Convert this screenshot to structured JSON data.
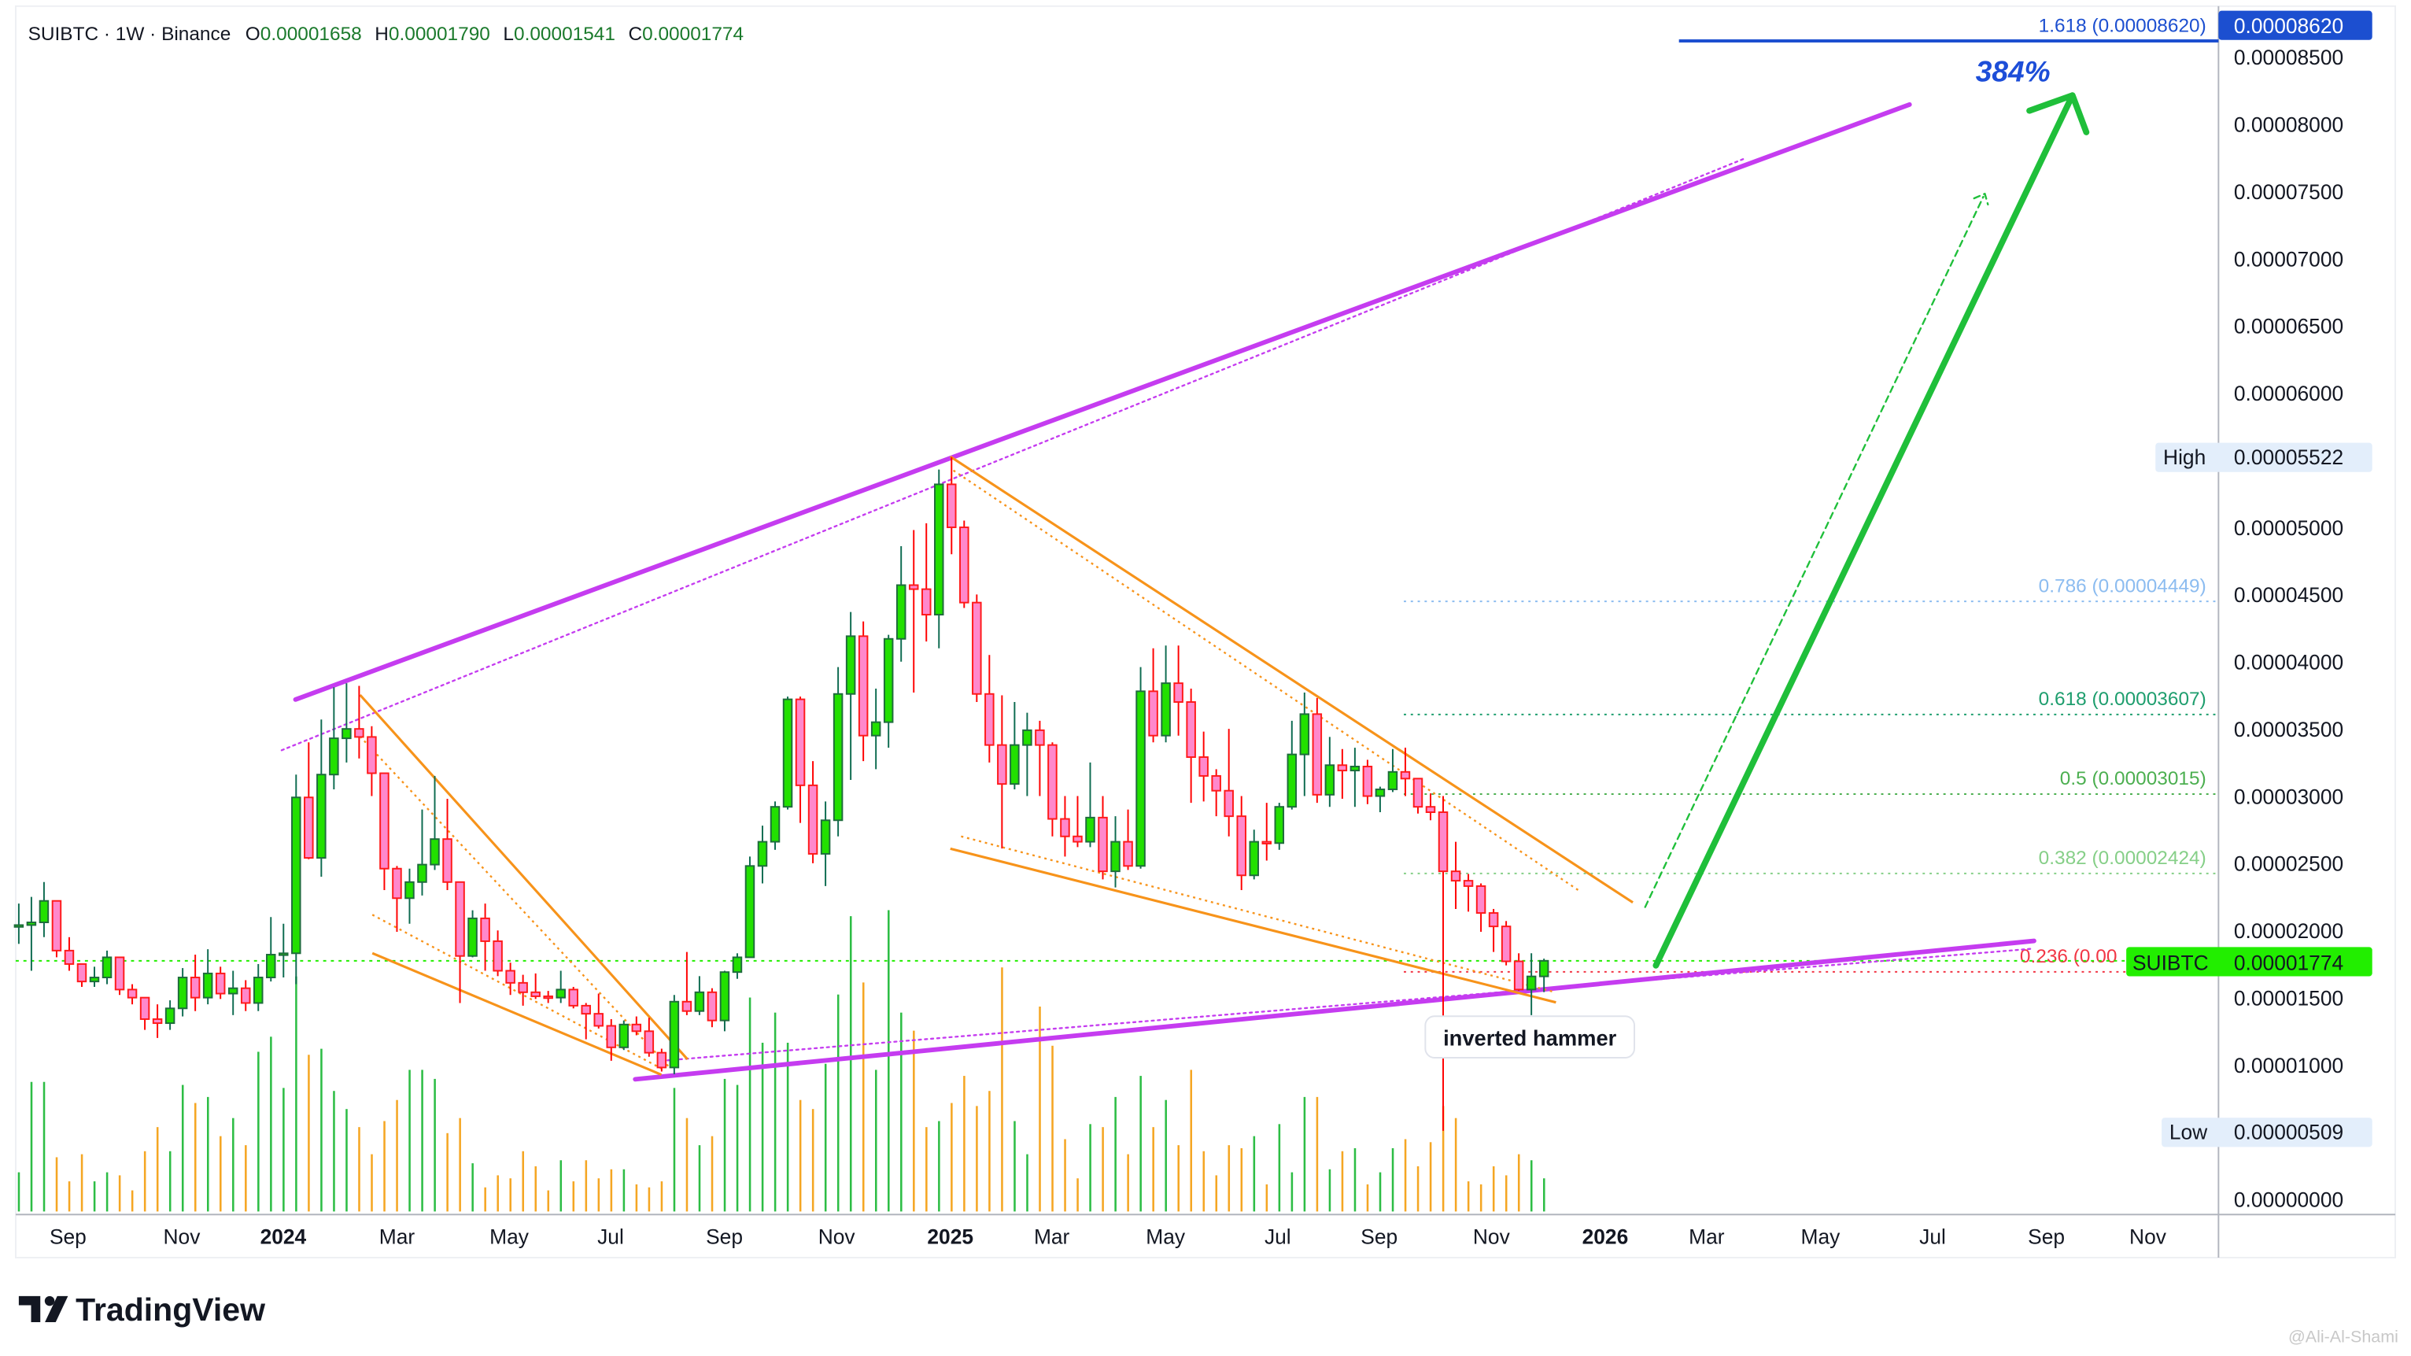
{
  "header": {
    "symbol_line": "SUIBTC · 1W · Binance",
    "o_label": "O",
    "o_value": "0.00001658",
    "h_label": "H",
    "h_value": "0.00001790",
    "l_label": "L",
    "l_value": "0.00001541",
    "c_label": "C",
    "c_value": "0.00001774"
  },
  "colors": {
    "up_body": "#22e000",
    "up_border": "#1e6b3c",
    "up_wick": "#0d6b50",
    "down_body": "#ff88cc",
    "down_border": "#ff1a1a",
    "down_wick": "#ff0000",
    "volume_up": "#2dbd45",
    "volume_down": "#f5a623",
    "channel": "#c53cf0",
    "wedge": "#f7931a",
    "arrow": "#1fbf3a",
    "fib_1618": "#1c4fd0",
    "fib_0786": "#8cbcf0",
    "fib_0618": "#1e9e6e",
    "fib_05": "#4caf50",
    "fib_0382": "#86cf88",
    "fib_0236": "#f23645",
    "last_price": "#22ee00"
  },
  "price_axis": {
    "ticks": [
      "0.00000000",
      "0.00001000",
      "0.00001500",
      "0.00002000",
      "0.00002500",
      "0.00003000",
      "0.00003500",
      "0.00004000",
      "0.00004500",
      "0.00005000",
      "0.00006000",
      "0.00006500",
      "0.00007000",
      "0.00007500",
      "0.00008000",
      "0.00008500"
    ],
    "tick_values": [
      0,
      1e-05,
      1.5e-05,
      2e-05,
      2.5e-05,
      3e-05,
      3.5e-05,
      4e-05,
      4.5e-05,
      5e-05,
      6e-05,
      6.5e-05,
      7e-05,
      7.5e-05,
      8e-05,
      8.5e-05
    ],
    "fib_tag": "0.00008620",
    "high_label": "High",
    "high_value": "0.00005522",
    "last_symbol": "SUIBTC",
    "last_value": "0.00001774",
    "low_label": "Low",
    "low_value": "0.00000509"
  },
  "time_axis": {
    "labels": [
      {
        "text": "Sep",
        "bold": false
      },
      {
        "text": "Nov",
        "bold": false
      },
      {
        "text": "2024",
        "bold": true
      },
      {
        "text": "Mar",
        "bold": false
      },
      {
        "text": "May",
        "bold": false
      },
      {
        "text": "Jul",
        "bold": false
      },
      {
        "text": "Sep",
        "bold": false
      },
      {
        "text": "Nov",
        "bold": false
      },
      {
        "text": "2025",
        "bold": true
      },
      {
        "text": "Mar",
        "bold": false
      },
      {
        "text": "May",
        "bold": false
      },
      {
        "text": "Jul",
        "bold": false
      },
      {
        "text": "Sep",
        "bold": false
      },
      {
        "text": "Nov",
        "bold": false
      },
      {
        "text": "2026",
        "bold": true
      },
      {
        "text": "Mar",
        "bold": false
      },
      {
        "text": "May",
        "bold": false
      },
      {
        "text": "Jul",
        "bold": false
      },
      {
        "text": "Sep",
        "bold": false
      },
      {
        "text": "Nov",
        "bold": false
      }
    ]
  },
  "fib_levels": [
    {
      "label": "1.618 (0.00008620)",
      "price": 8.62e-05,
      "color_key": "fib_1618",
      "style": "solid"
    },
    {
      "label": "0.786 (0.00004449)",
      "price": 4.449e-05,
      "color_key": "fib_0786",
      "style": "dotted"
    },
    {
      "label": "0.618 (0.00003607)",
      "price": 3.607e-05,
      "color_key": "fib_0618",
      "style": "dotted"
    },
    {
      "label": "0.5 (0.00003015)",
      "price": 3.015e-05,
      "color_key": "fib_05",
      "style": "dotted"
    },
    {
      "label": "0.382 (0.00002424)",
      "price": 2.424e-05,
      "color_key": "fib_0382",
      "style": "dotted"
    },
    {
      "label": "0.236 (0.00",
      "price": 1.692e-05,
      "color_key": "fib_0236",
      "style": "dotted"
    }
  ],
  "annotations": {
    "target_percent": "384%",
    "pattern_label": "inverted hammer"
  },
  "branding": {
    "logo_text": "TradingView",
    "watermark": "@Ali-Al-Shami"
  },
  "chart_data": {
    "type": "candlestick",
    "interval": "1W",
    "symbol": "SUIBTC",
    "exchange": "Binance",
    "ylim": [
      0,
      8.9e-05
    ],
    "grid": false,
    "ohlc": [
      [
        2.03e-05,
        2.2e-05,
        1.9e-05,
        2.04e-05
      ],
      [
        2.04e-05,
        2.25e-05,
        1.7e-05,
        2.06e-05
      ],
      [
        2.06e-05,
        2.36e-05,
        1.95e-05,
        2.22e-05
      ],
      [
        2.22e-05,
        2.22e-05,
        1.8e-05,
        1.85e-05
      ],
      [
        1.85e-05,
        1.95e-05,
        1.7e-05,
        1.75e-05
      ],
      [
        1.75e-05,
        1.75e-05,
        1.58e-05,
        1.62e-05
      ],
      [
        1.62e-05,
        1.73e-05,
        1.58e-05,
        1.65e-05
      ],
      [
        1.65e-05,
        1.85e-05,
        1.6e-05,
        1.8e-05
      ],
      [
        1.8e-05,
        1.8e-05,
        1.52e-05,
        1.56e-05
      ],
      [
        1.56e-05,
        1.6e-05,
        1.45e-05,
        1.5e-05
      ],
      [
        1.5e-05,
        1.5e-05,
        1.26e-05,
        1.34e-05
      ],
      [
        1.34e-05,
        1.45e-05,
        1.2e-05,
        1.31e-05
      ],
      [
        1.31e-05,
        1.48e-05,
        1.26e-05,
        1.42e-05
      ],
      [
        1.42e-05,
        1.72e-05,
        1.36e-05,
        1.65e-05
      ],
      [
        1.65e-05,
        1.82e-05,
        1.4e-05,
        1.5e-05
      ],
      [
        1.5e-05,
        1.86e-05,
        1.45e-05,
        1.68e-05
      ],
      [
        1.68e-05,
        1.73e-05,
        1.49e-05,
        1.53e-05
      ],
      [
        1.53e-05,
        1.7e-05,
        1.37e-05,
        1.57e-05
      ],
      [
        1.57e-05,
        1.63e-05,
        1.4e-05,
        1.46e-05
      ],
      [
        1.46e-05,
        1.75e-05,
        1.4e-05,
        1.65e-05
      ],
      [
        1.65e-05,
        2.1e-05,
        1.62e-05,
        1.82e-05
      ],
      [
        1.82e-05,
        2.05e-05,
        1.65e-05,
        1.83e-05
      ],
      [
        1.83e-05,
        3.16e-05,
        1.6e-05,
        2.99e-05
      ],
      [
        2.99e-05,
        3.4e-05,
        2.53e-05,
        2.54e-05
      ],
      [
        2.54e-05,
        3.57e-05,
        2.4e-05,
        3.16e-05
      ],
      [
        3.16e-05,
        3.81e-05,
        3.05e-05,
        3.43e-05
      ],
      [
        3.43e-05,
        3.84e-05,
        3.25e-05,
        3.5e-05
      ],
      [
        3.5e-05,
        3.82e-05,
        3.28e-05,
        3.44e-05
      ],
      [
        3.44e-05,
        3.52e-05,
        3e-05,
        3.17e-05
      ],
      [
        3.17e-05,
        3.17e-05,
        2.3e-05,
        2.46e-05
      ],
      [
        2.46e-05,
        2.48e-05,
        1.99e-05,
        2.24e-05
      ],
      [
        2.24e-05,
        2.46e-05,
        2.05e-05,
        2.36e-05
      ],
      [
        2.36e-05,
        2.9e-05,
        2.26e-05,
        2.49e-05
      ],
      [
        2.49e-05,
        3.15e-05,
        2.45e-05,
        2.68e-05
      ],
      [
        2.68e-05,
        2.98e-05,
        2.3e-05,
        2.36e-05
      ],
      [
        2.36e-05,
        2.36e-05,
        1.46e-05,
        1.81e-05
      ],
      [
        1.81e-05,
        2.15e-05,
        1.8e-05,
        2.09e-05
      ],
      [
        2.09e-05,
        2.2e-05,
        1.7e-05,
        1.92e-05
      ],
      [
        1.92e-05,
        2e-05,
        1.66e-05,
        1.7e-05
      ],
      [
        1.7e-05,
        1.76e-05,
        1.52e-05,
        1.61e-05
      ],
      [
        1.61e-05,
        1.67e-05,
        1.44e-05,
        1.54e-05
      ],
      [
        1.54e-05,
        1.68e-05,
        1.49e-05,
        1.51e-05
      ],
      [
        1.51e-05,
        1.55e-05,
        1.46e-05,
        1.5e-05
      ],
      [
        1.5e-05,
        1.7e-05,
        1.46e-05,
        1.56e-05
      ],
      [
        1.56e-05,
        1.58e-05,
        1.42e-05,
        1.44e-05
      ],
      [
        1.44e-05,
        1.46e-05,
        1.19e-05,
        1.38e-05
      ],
      [
        1.38e-05,
        1.53e-05,
        1.27e-05,
        1.29e-05
      ],
      [
        1.29e-05,
        1.34e-05,
        1.03e-05,
        1.13e-05
      ],
      [
        1.13e-05,
        1.33e-05,
        1.11e-05,
        1.3e-05
      ],
      [
        1.3e-05,
        1.36e-05,
        1.22e-05,
        1.25e-05
      ],
      [
        1.25e-05,
        1.35e-05,
        1.06e-05,
        1.09e-05
      ],
      [
        1.09e-05,
        1.12e-05,
        9.5e-06,
        9.8e-06
      ],
      [
        9.8e-06,
        1.52e-05,
        9.3e-06,
        1.47e-05
      ],
      [
        1.47e-05,
        1.84e-05,
        1.37e-05,
        1.4e-05
      ],
      [
        1.4e-05,
        1.66e-05,
        1.37e-05,
        1.54e-05
      ],
      [
        1.54e-05,
        1.57e-05,
        1.28e-05,
        1.33e-05
      ],
      [
        1.33e-05,
        1.7e-05,
        1.25e-05,
        1.69e-05
      ],
      [
        1.69e-05,
        1.83e-05,
        1.64e-05,
        1.8e-05
      ],
      [
        1.8e-05,
        2.55e-05,
        1.8e-05,
        2.48e-05
      ],
      [
        2.48e-05,
        2.78e-05,
        2.35e-05,
        2.66e-05
      ],
      [
        2.66e-05,
        2.96e-05,
        2.6e-05,
        2.92e-05
      ],
      [
        2.92e-05,
        3.74e-05,
        2.9e-05,
        3.72e-05
      ],
      [
        3.72e-05,
        3.74e-05,
        2.8e-05,
        3.08e-05
      ],
      [
        3.08e-05,
        3.26e-05,
        2.5e-05,
        2.57e-05
      ],
      [
        2.57e-05,
        2.96e-05,
        2.33e-05,
        2.82e-05
      ],
      [
        2.82e-05,
        3.96e-05,
        2.7e-05,
        3.76e-05
      ],
      [
        3.76e-05,
        4.37e-05,
        3.12e-05,
        4.19e-05
      ],
      [
        4.19e-05,
        4.3e-05,
        3.26e-05,
        3.45e-05
      ],
      [
        3.45e-05,
        3.8e-05,
        3.2e-05,
        3.55e-05
      ],
      [
        3.55e-05,
        4.2e-05,
        3.36e-05,
        4.17e-05
      ],
      [
        4.17e-05,
        4.86e-05,
        4e-05,
        4.57e-05
      ],
      [
        4.57e-05,
        4.98e-05,
        3.77e-05,
        4.54e-05
      ],
      [
        4.54e-05,
        5.03e-05,
        4.15e-05,
        4.35e-05
      ],
      [
        4.35e-05,
        5.43e-05,
        4.1e-05,
        5.32e-05
      ],
      [
        5.32e-05,
        5.522e-05,
        4.8e-05,
        5e-05
      ],
      [
        5e-05,
        5.05e-05,
        4.4e-05,
        4.44e-05
      ],
      [
        4.44e-05,
        4.5e-05,
        3.7e-05,
        3.76e-05
      ],
      [
        3.76e-05,
        4.05e-05,
        3.25e-05,
        3.38e-05
      ],
      [
        3.38e-05,
        3.75e-05,
        2.61e-05,
        3.09e-05
      ],
      [
        3.09e-05,
        3.7e-05,
        3.05e-05,
        3.38e-05
      ],
      [
        3.38e-05,
        3.62e-05,
        3e-05,
        3.49e-05
      ],
      [
        3.49e-05,
        3.56e-05,
        3e-05,
        3.38e-05
      ],
      [
        3.38e-05,
        3.4e-05,
        2.7e-05,
        2.83e-05
      ],
      [
        2.83e-05,
        3e-05,
        2.55e-05,
        2.7e-05
      ],
      [
        2.7e-05,
        3e-05,
        2.62e-05,
        2.66e-05
      ],
      [
        2.66e-05,
        3.25e-05,
        2.62e-05,
        2.84e-05
      ],
      [
        2.84e-05,
        3e-05,
        2.38e-05,
        2.44e-05
      ],
      [
        2.44e-05,
        2.85e-05,
        2.32e-05,
        2.66e-05
      ],
      [
        2.66e-05,
        2.9e-05,
        2.45e-05,
        2.48e-05
      ],
      [
        2.48e-05,
        3.96e-05,
        2.46e-05,
        3.78e-05
      ],
      [
        3.78e-05,
        4.1e-05,
        3.4e-05,
        3.45e-05
      ],
      [
        3.45e-05,
        4.12e-05,
        3.4e-05,
        3.84e-05
      ],
      [
        3.84e-05,
        4.12e-05,
        3.45e-05,
        3.7e-05
      ],
      [
        3.7e-05,
        3.8e-05,
        2.95e-05,
        3.29e-05
      ],
      [
        3.29e-05,
        3.48e-05,
        2.96e-05,
        3.15e-05
      ],
      [
        3.15e-05,
        3.2e-05,
        2.85e-05,
        3.04e-05
      ],
      [
        3.04e-05,
        3.5e-05,
        2.7e-05,
        2.85e-05
      ],
      [
        2.85e-05,
        3e-05,
        2.3e-05,
        2.41e-05
      ],
      [
        2.41e-05,
        2.75e-05,
        2.38e-05,
        2.66e-05
      ],
      [
        2.66e-05,
        2.95e-05,
        2.52e-05,
        2.65e-05
      ],
      [
        2.65e-05,
        2.95e-05,
        2.6e-05,
        2.92e-05
      ],
      [
        2.92e-05,
        3.56e-05,
        2.9e-05,
        3.31e-05
      ],
      [
        3.31e-05,
        3.77e-05,
        3e-05,
        3.61e-05
      ],
      [
        3.61e-05,
        3.73e-05,
        2.95e-05,
        3.01e-05
      ],
      [
        3.01e-05,
        3.44e-05,
        2.92e-05,
        3.23e-05
      ],
      [
        3.23e-05,
        3.35e-05,
        2.98e-05,
        3.19e-05
      ],
      [
        3.19e-05,
        3.36e-05,
        2.92e-05,
        3.22e-05
      ],
      [
        3.22e-05,
        3.27e-05,
        2.94e-05,
        3e-05
      ],
      [
        3e-05,
        3.07e-05,
        2.88e-05,
        3.05e-05
      ],
      [
        3.05e-05,
        3.35e-05,
        3.03e-05,
        3.18e-05
      ],
      [
        3.18e-05,
        3.36e-05,
        3e-05,
        3.13e-05
      ],
      [
        3.13e-05,
        3.13e-05,
        2.87e-05,
        2.92e-05
      ],
      [
        2.92e-05,
        3.02e-05,
        2.82e-05,
        2.88e-05
      ],
      [
        2.88e-05,
        3e-05,
        5.09e-06,
        2.44e-05
      ],
      [
        2.44e-05,
        2.66e-05,
        2.16e-05,
        2.37e-05
      ],
      [
        2.37e-05,
        2.42e-05,
        2.14e-05,
        2.33e-05
      ],
      [
        2.33e-05,
        2.35e-05,
        1.99e-05,
        2.13e-05
      ],
      [
        2.13e-05,
        2.16e-05,
        1.84e-05,
        2.03e-05
      ],
      [
        2.03e-05,
        2.07e-05,
        1.74e-05,
        1.77e-05
      ],
      [
        1.77e-05,
        1.83e-05,
        1.55e-05,
        1.56e-05
      ],
      [
        1.56e-05,
        1.83e-05,
        1.37e-05,
        1.658e-05
      ],
      [
        1.658e-05,
        1.79e-05,
        1.541e-05,
        1.774e-05
      ]
    ],
    "volume_relative": [
      0.13,
      0.43,
      0.43,
      0.18,
      0.1,
      0.19,
      0.1,
      0.13,
      0.12,
      0.07,
      0.2,
      0.28,
      0.2,
      0.42,
      0.36,
      0.38,
      0.25,
      0.31,
      0.22,
      0.53,
      0.58,
      0.41,
      0.78,
      0.52,
      0.54,
      0.4,
      0.34,
      0.28,
      0.19,
      0.3,
      0.37,
      0.47,
      0.47,
      0.44,
      0.26,
      0.31,
      0.16,
      0.08,
      0.12,
      0.11,
      0.2,
      0.15,
      0.07,
      0.17,
      0.1,
      0.17,
      0.11,
      0.14,
      0.14,
      0.09,
      0.08,
      0.1,
      0.41,
      0.31,
      0.22,
      0.25,
      0.44,
      0.42,
      0.71,
      0.56,
      0.66,
      0.56,
      0.37,
      0.34,
      0.49,
      0.72,
      0.98,
      0.76,
      0.47,
      1.0,
      0.66,
      0.6,
      0.28,
      0.3,
      0.36,
      0.45,
      0.35,
      0.4,
      0.81,
      0.3,
      0.19,
      0.68,
      0.55,
      0.24,
      0.11,
      0.29,
      0.28,
      0.38,
      0.19,
      0.45,
      0.28,
      0.37,
      0.22,
      0.47,
      0.2,
      0.12,
      0.22,
      0.21,
      0.25,
      0.09,
      0.29,
      0.13,
      0.38,
      0.38,
      0.14,
      0.2,
      0.21,
      0.09,
      0.13,
      0.21,
      0.24,
      0.15,
      0.23,
      0.35,
      0.31,
      0.1,
      0.09,
      0.15,
      0.12,
      0.19,
      0.17,
      0.11
    ]
  }
}
